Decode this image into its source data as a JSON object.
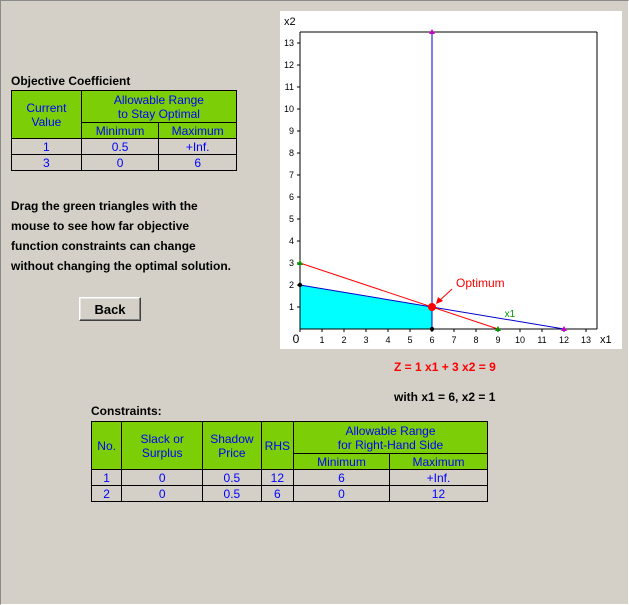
{
  "objective": {
    "title": "Objective Coefficient",
    "header_current": "Current Value",
    "header_range_l1": "Allowable Range",
    "header_range_l2": "to Stay Optimal",
    "header_min": "Minimum",
    "header_max": "Maximum",
    "rows": [
      {
        "current": "1",
        "min": "0.5",
        "max": "+Inf."
      },
      {
        "current": "3",
        "min": "0",
        "max": "6"
      }
    ]
  },
  "instructions": {
    "line1": "Drag the green triangles with the",
    "line2": "mouse to see how far objective",
    "line3": "function constraints can change",
    "line4": "without changing the optimal solution."
  },
  "back_label": "Back",
  "equation": {
    "z_text": "Z = 1 x1 + 3 x2 = 9",
    "z_color": "#ff0000",
    "solution_text": "with x1 = 6, x2 = 1"
  },
  "constraints": {
    "title": "Constraints:",
    "header_no": "No.",
    "header_slack_l1": "Slack or",
    "header_slack_l2": "Surplus",
    "header_shadow_l1": "Shadow",
    "header_shadow_l2": "Price",
    "header_rhs": "RHS",
    "header_range_l1": "Allowable Range",
    "header_range_l2": "for Right-Hand Side",
    "header_min": "Minimum",
    "header_max": "Maximum",
    "rows": [
      {
        "no": "1",
        "slack": "0",
        "shadow": "0.5",
        "rhs": "12",
        "min": "6",
        "max": "+Inf."
      },
      {
        "no": "2",
        "slack": "0",
        "shadow": "0.5",
        "rhs": "6",
        "min": "0",
        "max": "12"
      }
    ]
  },
  "chart_data": {
    "type": "line",
    "xlabel": "x1",
    "ylabel": "x2",
    "xlim": [
      0,
      13.5
    ],
    "ylim": [
      0,
      13.5
    ],
    "xticks": [
      0,
      1,
      2,
      3,
      4,
      5,
      6,
      7,
      8,
      9,
      10,
      11,
      12,
      13
    ],
    "yticks": [
      1,
      2,
      3,
      4,
      5,
      6,
      7,
      8,
      9,
      10,
      11,
      12,
      13
    ],
    "feasible_region": [
      [
        0,
        0
      ],
      [
        0,
        2
      ],
      [
        6,
        1
      ],
      [
        6,
        0
      ]
    ],
    "feasible_color": "#00ffff",
    "lines": [
      {
        "role": "constraint-1",
        "points": [
          [
            0,
            2
          ],
          [
            12,
            0
          ]
        ],
        "color": "#0000cc"
      },
      {
        "role": "constraint-2",
        "points": [
          [
            6,
            0
          ],
          [
            6,
            13.5
          ]
        ],
        "color": "#0000cc"
      },
      {
        "role": "objective",
        "points": [
          [
            0,
            3
          ],
          [
            9,
            0
          ]
        ],
        "color": "#ff0000"
      }
    ],
    "handles": [
      {
        "x": 0,
        "y": 3,
        "shape": "triangle",
        "color": "#009900"
      },
      {
        "x": 9,
        "y": 0,
        "shape": "triangle",
        "color": "#009900"
      },
      {
        "x": 0,
        "y": 2,
        "shape": "dot",
        "color": "#000000"
      },
      {
        "x": 6,
        "y": 0,
        "shape": "dot",
        "color": "#000000"
      },
      {
        "x": 12,
        "y": 0,
        "shape": "triangle",
        "color": "#cc00cc"
      },
      {
        "x": 6,
        "y": 13.5,
        "shape": "triangle",
        "color": "#cc00cc"
      }
    ],
    "optimum": {
      "x": 6,
      "y": 1,
      "label": "Optimum",
      "color": "#ff0000"
    },
    "objective_label": {
      "x": 9.3,
      "y": 0.55,
      "text": "x1",
      "color": "#009900"
    },
    "colors": {
      "axis": "#000000",
      "tick_text": "#000000",
      "grid": "none"
    }
  }
}
